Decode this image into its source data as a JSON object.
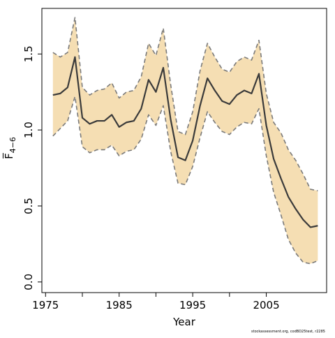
{
  "chart_data": {
    "type": "line",
    "xlabel": "Year",
    "ylabel": "F̅",
    "ylabel_subscript": "4−6",
    "xticks": [
      1975,
      1985,
      1995,
      2005
    ],
    "xtick_labels": [
      "1975",
      "1985",
      "1995",
      "2005"
    ],
    "yticks": [
      0.0,
      0.5,
      1.0,
      1.5
    ],
    "ytick_labels": [
      "0.0",
      "0.5",
      "1.0",
      "1.5"
    ],
    "xlim": [
      1974.5,
      2013.2
    ],
    "ylim": [
      -0.07,
      1.8
    ],
    "grid": false,
    "band_color": "#f5deb3",
    "line_color": "#3a3a3a",
    "dash_color": "#7a7a7a",
    "x": [
      1976,
      1977,
      1978,
      1979,
      1980,
      1981,
      1982,
      1983,
      1984,
      1985,
      1986,
      1987,
      1988,
      1989,
      1990,
      1991,
      1992,
      1993,
      1994,
      1995,
      1996,
      1997,
      1998,
      1999,
      2000,
      2001,
      2002,
      2003,
      2004,
      2005,
      2006,
      2007,
      2008,
      2009,
      2010,
      2011,
      2012
    ],
    "series": [
      {
        "role": "estimate",
        "values": [
          1.23,
          1.24,
          1.28,
          1.48,
          1.08,
          1.04,
          1.06,
          1.06,
          1.1,
          1.02,
          1.05,
          1.06,
          1.14,
          1.33,
          1.25,
          1.41,
          1.07,
          0.82,
          0.8,
          0.93,
          1.16,
          1.34,
          1.26,
          1.19,
          1.17,
          1.23,
          1.26,
          1.24,
          1.37,
          1.03,
          0.81,
          0.68,
          0.56,
          0.48,
          0.41,
          0.36,
          0.37
        ]
      },
      {
        "role": "upper",
        "values": [
          1.51,
          1.48,
          1.51,
          1.74,
          1.28,
          1.23,
          1.26,
          1.27,
          1.31,
          1.21,
          1.25,
          1.26,
          1.35,
          1.57,
          1.49,
          1.67,
          1.3,
          0.99,
          0.97,
          1.12,
          1.39,
          1.57,
          1.48,
          1.4,
          1.38,
          1.45,
          1.48,
          1.46,
          1.59,
          1.24,
          1.05,
          0.98,
          0.87,
          0.8,
          0.71,
          0.61,
          0.6
        ]
      },
      {
        "role": "lower",
        "values": [
          0.96,
          1.01,
          1.06,
          1.22,
          0.89,
          0.85,
          0.87,
          0.87,
          0.9,
          0.83,
          0.86,
          0.87,
          0.94,
          1.1,
          1.03,
          1.16,
          0.86,
          0.65,
          0.64,
          0.76,
          0.95,
          1.12,
          1.05,
          0.99,
          0.97,
          1.02,
          1.05,
          1.04,
          1.14,
          0.83,
          0.59,
          0.44,
          0.28,
          0.19,
          0.13,
          0.12,
          0.14
        ]
      }
    ]
  },
  "footer_text": "stockassessment.org, codBD25test, r2285"
}
